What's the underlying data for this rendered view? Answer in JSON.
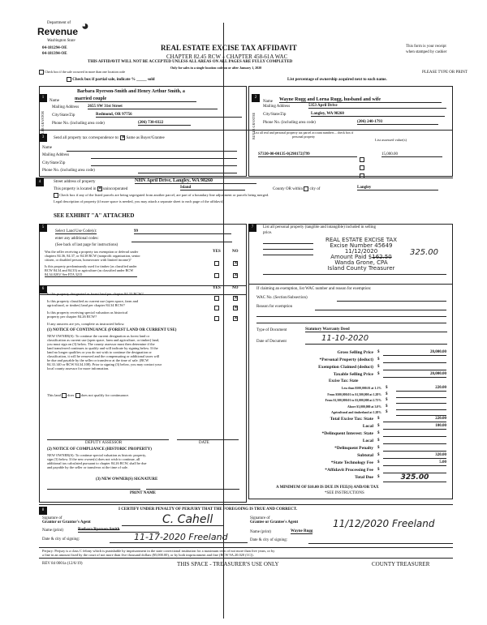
{
  "header": {
    "logo_top": "Department of",
    "logo_main": "Revenue",
    "logo_sub": "Washington State",
    "codes": [
      "04-181294-OE",
      "04-181394-OE"
    ],
    "title": "REAL ESTATE EXCISE TAX AFFIDAVIT",
    "subtitle": "CHAPTER 82.45 RCW – CHAPTER 458-61A WAC",
    "warning": "THIS AFFIDAVIT WILL NOT BE ACCEPTED UNLESS ALL AREAS ON ALL PAGES ARE FULLY COMPLETED",
    "only_for": "Only for sales in a single location code on or after January 1, 2020",
    "receipt": [
      "This form is your receipt",
      "when stamped by cashier"
    ],
    "please": "PLEASE TYPE OR PRINT",
    "check_multi": "Check box if the sale occurred in more than one location code",
    "check_partial": "Check box if partial sale, indicate % _____ sold",
    "list_pct": "List percentage of ownership acquired next to each name."
  },
  "seller": {
    "num": "1",
    "side": "SELLER GRANTOR",
    "name_label": "Name",
    "name": [
      "Barbara Ryerson-Smith and Henry Arthur Smith, a",
      "married couple"
    ],
    "addr_label": "Mailing Address",
    "addr": "2655 SW 31st Street",
    "city_label": "City/State/Zip",
    "city": "Redmond, OR 97756",
    "phone_label": "Phone No. (including area code)",
    "phone": "(206) 730-0322"
  },
  "buyer": {
    "num": "2",
    "side": "BUYER GRANTEE",
    "name_label": "Name",
    "name": "Wayne Rugg and Lorna Rugg, husband and wife",
    "addr_label": "Mailing Address",
    "addr": "5353 April Drive",
    "city_label": "City/State/Zip",
    "city": "Langley, WA 98260",
    "phone_label": "Phone No. (including area code)",
    "phone": "(206) 240-1793"
  },
  "sec3": {
    "num": "3",
    "send": "Send all property tax correspondence to:",
    "same": "Same as Buyer/Grantee",
    "checked": true,
    "name": "Name",
    "addr": "Mailing Address",
    "city": "City/State/Zip",
    "phone": "Phone No. (including area code)",
    "parcel_head": "List all real and personal property tax parcel account numbers – check box if personal property",
    "value_head": "List assessed value(s)",
    "parcel": "S7330-00-00135-0(298172)799",
    "value": "15,000.00"
  },
  "sec4": {
    "num": "4",
    "street_label": "Street address of property",
    "street": "NHN April Drive, Langley, WA 98260",
    "located": "This property is located in",
    "uninc": "unincorporated",
    "county": "Island",
    "county_or": "County OR within",
    "city_of": "city of",
    "city": "Langley",
    "segregated": "Check box if any of the listed parcels are being segregated from another parcel, are part of a boundary line adjustment or parcels being merged.",
    "legal": "Legal description of property (if more space is needed, you may attach a separate sheet to each page of the affidavit)",
    "exhibit": "SEE EXHIBIT \"A\" ATTACHED"
  },
  "sec5": {
    "num": "5",
    "land_use": "Select Land Use Code(s):",
    "code": "99",
    "additional": "enter any additional codes:",
    "see_back": "(See back of last page for instructions)",
    "yes": "YES",
    "no": "NO",
    "q1": [
      "Was the seller receiving a property tax exemption or deferral under",
      "chapters 84.36, 84.37, or 84.38 RCW (nonprofit organization, senior",
      "citizen, or disabled person, homeowner with limited income)?"
    ],
    "q2": [
      "Is this property predominantly used for timber (as classified under",
      "RCW 84.34 and 84.33) or agriculture (as classified under RCW",
      "84.34.020)? See ETA 3215"
    ]
  },
  "sec6": {
    "num": "6",
    "yes": "YES",
    "no": "NO",
    "q1": "Is this property designated as forest land per chapter 84.33 RCW?",
    "q2": [
      "Is this property classified as current use (open space, farm and",
      "agricultural, or timber) land per chapter 84.34 RCW?"
    ],
    "q3": [
      "Is this property receiving special valuation as historical",
      "property per chapter 84.26 RCW?"
    ],
    "if_yes": "If any answers are yes, complete as instructed below.",
    "n1_title": "(1) NOTICE OF CONTINUANCE (FOREST LAND OR CURRENT USE)",
    "n1": [
      "NEW OWNER(S): To continue the current designation as forest land or",
      "classification as current use (open space, farm and agriculture, or timber) land,",
      "you must sign on (3) below. The county assessor must then determine if the",
      "land transferred continues to qualify and will indicate by signing below. If the",
      "land no longer qualifies or you do not wish to continue the designation or",
      "classification, it will be removed and the compensating or additional taxes will",
      "be due and payable by the seller or transferor at the time of sale. (RCW",
      "84.33.140 or RCW 84.34.108). Prior to signing (3) below, you may contact your",
      "local county assessor for more information."
    ],
    "this_land": "This land",
    "does": "does",
    "does_not": "does not qualify for continuance.",
    "deputy": "DEPUTY ASSESSOR",
    "date": "DATE",
    "n2_title": "(2) NOTICE OF COMPLIANCE (HISTORIC PROPERTY)",
    "n2": [
      "NEW OWNER(S): To continue special valuation as historic property,",
      "sign (3) below. If the new owner(s) does not wish to continue, all",
      "additional tax calculated pursuant to chapter 84.26 RCW, shall be due",
      "and payable by the seller or transferor at the time of sale."
    ],
    "n3": "(3) NEW OWNER(S) SIGNATURE",
    "print_name": "PRINT NAME"
  },
  "sec7": {
    "num": "7",
    "list": "List all personal property (tangible and intangible) included in selling",
    "price": "price.",
    "stamp": [
      "REAL ESTATE EXCISE TAX",
      "Excise Number 45649",
      "11/12/2020",
      "Amount Paid $",
      "Wanda Grone, CPA",
      "Island County Treasurer"
    ],
    "stamp_struck": "162.50",
    "stamp_hand": "325.00",
    "exempt": "If claiming an exemption, list WAC number and reason for exemption:",
    "wac": "WAC No. (Section/Subsection)",
    "reason": "Reason for exemption",
    "type_label": "Type of Document",
    "type": "Statutory Warranty Deed",
    "date_label": "Date of Document",
    "date": "11-10-2020"
  },
  "tax": {
    "rows": [
      {
        "label": "Gross Selling Price",
        "value": "20,000.00"
      },
      {
        "label": "*Personal Property (deduct)",
        "value": ""
      },
      {
        "label": "Exemption Claimed (deduct)",
        "value": ""
      },
      {
        "label": "Taxable Selling Price",
        "value": "20,000.00"
      }
    ],
    "excise_head": "Excise Tax: State",
    "brackets": [
      {
        "label": "Less than $500,000.01 at 1.1%",
        "value": "220.00"
      },
      {
        "label": "From $500,000.01 to $1,500,000 at 1.28%",
        "value": ""
      },
      {
        "label": "From $1,500,000.01 to $3,000,000 at 2.75%",
        "value": ""
      },
      {
        "label": "Above $3,000,000 at 3.0%",
        "value": ""
      },
      {
        "label": "Agricultural and timberland at 1.28%",
        "value": ""
      }
    ],
    "rows2": [
      {
        "label": "Total Excise Tax: State",
        "value": "220.00"
      },
      {
        "label": "Local",
        "value": "100.00"
      },
      {
        "label": "*Delinquent Interest: State",
        "value": ""
      },
      {
        "label": "Local",
        "value": ""
      },
      {
        "label": "*Delinquent Penalty",
        "value": ""
      },
      {
        "label": "Subtotal",
        "value": "320.00"
      },
      {
        "label": "*State Technology Fee",
        "value": "5.00"
      },
      {
        "label": "*Affidavit Processing Fee",
        "value": ""
      },
      {
        "label": "Total Due",
        "value": "325.00"
      }
    ],
    "minimum": "A MINIMUM OF $10.00 IS DUE IN FEE(S) AND/OR TAX",
    "see": "*SEE INSTRUCTIONS"
  },
  "sec8": {
    "num": "8",
    "certify": "I CERTIFY UNDER PENALTY OF PERJURY THAT THE FOREGOING IS TRUE AND CORRECT.",
    "sig_grantor": [
      "Signature of",
      "Grantor or Grantor's Agent"
    ],
    "sig_grantee": [
      "Signature of",
      "Grantee or Grantee's Agent"
    ],
    "name_print": "Name (print)",
    "grantor_name": "Barbara Ryerson-Smith",
    "grantee_name": "Wayne Rugg",
    "date_city": "Date & city of signing:",
    "grantor_sig": "C. Cahell",
    "grantor_date": "11-17-2020 Freeland",
    "grantee_date": "11/12/2020 Freeland",
    "perjury": [
      "Perjury: Perjury is a class C felony which is punishable by imprisonment in the state correctional institution for a maximum term of not more than five years, or by",
      "a fine in an amount fixed by the court of not more than five thousand dollars ($5,000.00), or by both imprisonment and fine (RCW 9A.20.020 (1C))."
    ]
  },
  "footer": {
    "rev": "REV 84 0001a (12/6/19)",
    "space": "THIS SPACE - TREASURER'S USE ONLY",
    "county": "COUNTY TREASURER"
  }
}
